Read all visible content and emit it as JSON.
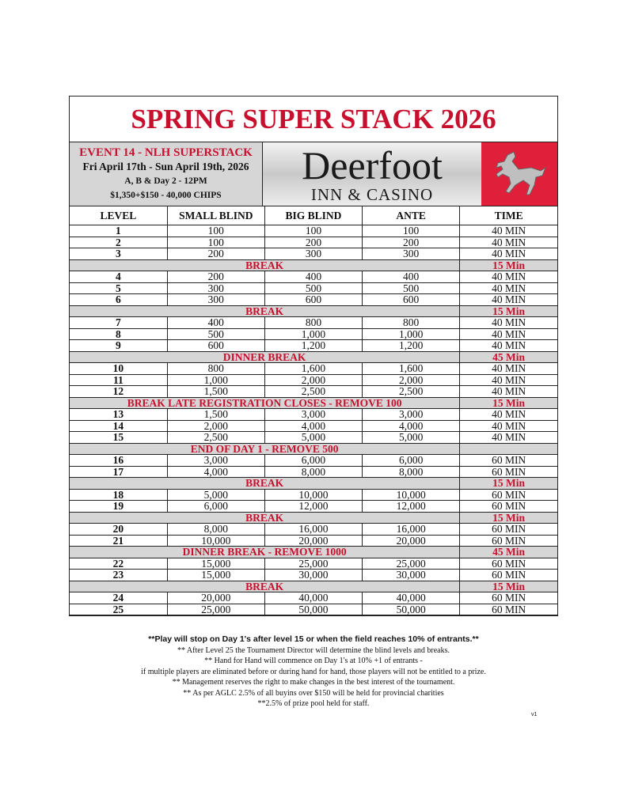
{
  "title": "SPRING SUPER STACK 2026",
  "event": {
    "name": "EVENT 14 - NLH SUPERSTACK",
    "dates": "Fri April 17th - Sun April 19th, 2026",
    "days": "A, B & Day 2 - 12PM",
    "buyin": "$1,350+$150 - 40,000 CHIPS"
  },
  "logo": {
    "name": "Deerfoot",
    "sub": "INN & CASINO",
    "icon": "horse-icon",
    "bg": "#e0203a"
  },
  "columns": [
    "LEVEL",
    "SMALL BLIND",
    "BIG BLIND",
    "ANTE",
    "TIME"
  ],
  "rows": [
    [
      "1",
      "100",
      "100",
      "100",
      "40 MIN"
    ],
    [
      "2",
      "100",
      "200",
      "200",
      "40 MIN"
    ],
    [
      "3",
      "200",
      "300",
      "300",
      "40 MIN"
    ],
    {
      "break": "BREAK",
      "time": "15 Min"
    },
    [
      "4",
      "200",
      "400",
      "400",
      "40 MIN"
    ],
    [
      "5",
      "300",
      "500",
      "500",
      "40 MIN"
    ],
    [
      "6",
      "300",
      "600",
      "600",
      "40 MIN"
    ],
    {
      "break": "BREAK",
      "time": "15 Min"
    },
    [
      "7",
      "400",
      "800",
      "800",
      "40 MIN"
    ],
    [
      "8",
      "500",
      "1,000",
      "1,000",
      "40 MIN"
    ],
    [
      "9",
      "600",
      "1,200",
      "1,200",
      "40 MIN"
    ],
    {
      "break": "DINNER BREAK",
      "time": "45 Min"
    },
    [
      "10",
      "800",
      "1,600",
      "1,600",
      "40 MIN"
    ],
    [
      "11",
      "1,000",
      "2,000",
      "2,000",
      "40 MIN"
    ],
    [
      "12",
      "1,500",
      "2,500",
      "2,500",
      "40 MIN"
    ],
    {
      "break": "BREAK LATE REGISTRATION CLOSES - REMOVE 100",
      "time": "15 Min"
    },
    [
      "13",
      "1,500",
      "3,000",
      "3,000",
      "40 MIN"
    ],
    [
      "14",
      "2,000",
      "4,000",
      "4,000",
      "40 MIN"
    ],
    [
      "15",
      "2,500",
      "5,000",
      "5,000",
      "40 MIN"
    ],
    {
      "break": "END OF DAY 1 - REMOVE 500",
      "time": ""
    },
    [
      "16",
      "3,000",
      "6,000",
      "6,000",
      "60 MIN"
    ],
    [
      "17",
      "4,000",
      "8,000",
      "8,000",
      "60 MIN"
    ],
    {
      "break": "BREAK",
      "time": "15 Min"
    },
    [
      "18",
      "5,000",
      "10,000",
      "10,000",
      "60 MIN"
    ],
    [
      "19",
      "6,000",
      "12,000",
      "12,000",
      "60 MIN"
    ],
    {
      "break": "BREAK",
      "time": "15 Min"
    },
    [
      "20",
      "8,000",
      "16,000",
      "16,000",
      "60 MIN"
    ],
    [
      "21",
      "10,000",
      "20,000",
      "20,000",
      "60 MIN"
    ],
    {
      "break": "DINNER BREAK - REMOVE 1000",
      "time": "45 Min"
    },
    [
      "22",
      "15,000",
      "25,000",
      "25,000",
      "60 MIN"
    ],
    [
      "23",
      "15,000",
      "30,000",
      "30,000",
      "60 MIN"
    ],
    {
      "break": "BREAK",
      "time": "15 Min"
    },
    [
      "24",
      "20,000",
      "40,000",
      "40,000",
      "60 MIN"
    ],
    [
      "25",
      "25,000",
      "50,000",
      "50,000",
      "60 MIN"
    ]
  ],
  "notes": [
    "**Play will stop on Day 1's after level 15 or when the field reaches 10% of entrants.**",
    "** After Level 25 the Tournament Director will determine the blind levels and breaks.",
    "** Hand for Hand will commence on Day 1's at 10% +1 of entrants -",
    "if multiple players are eliminated before or during hand for hand, those players will not be entitled to a prize.",
    "** Management reserves the right to make changes in the best interest of the tournament.",
    "** As per AGLC 2.5% of all buyins over $150 will be held for provincial charities",
    "**2.5% of prize pool held for staff."
  ],
  "version": "v1",
  "colors": {
    "accent": "#c8102e",
    "break_bg": "#d6d6d6"
  }
}
